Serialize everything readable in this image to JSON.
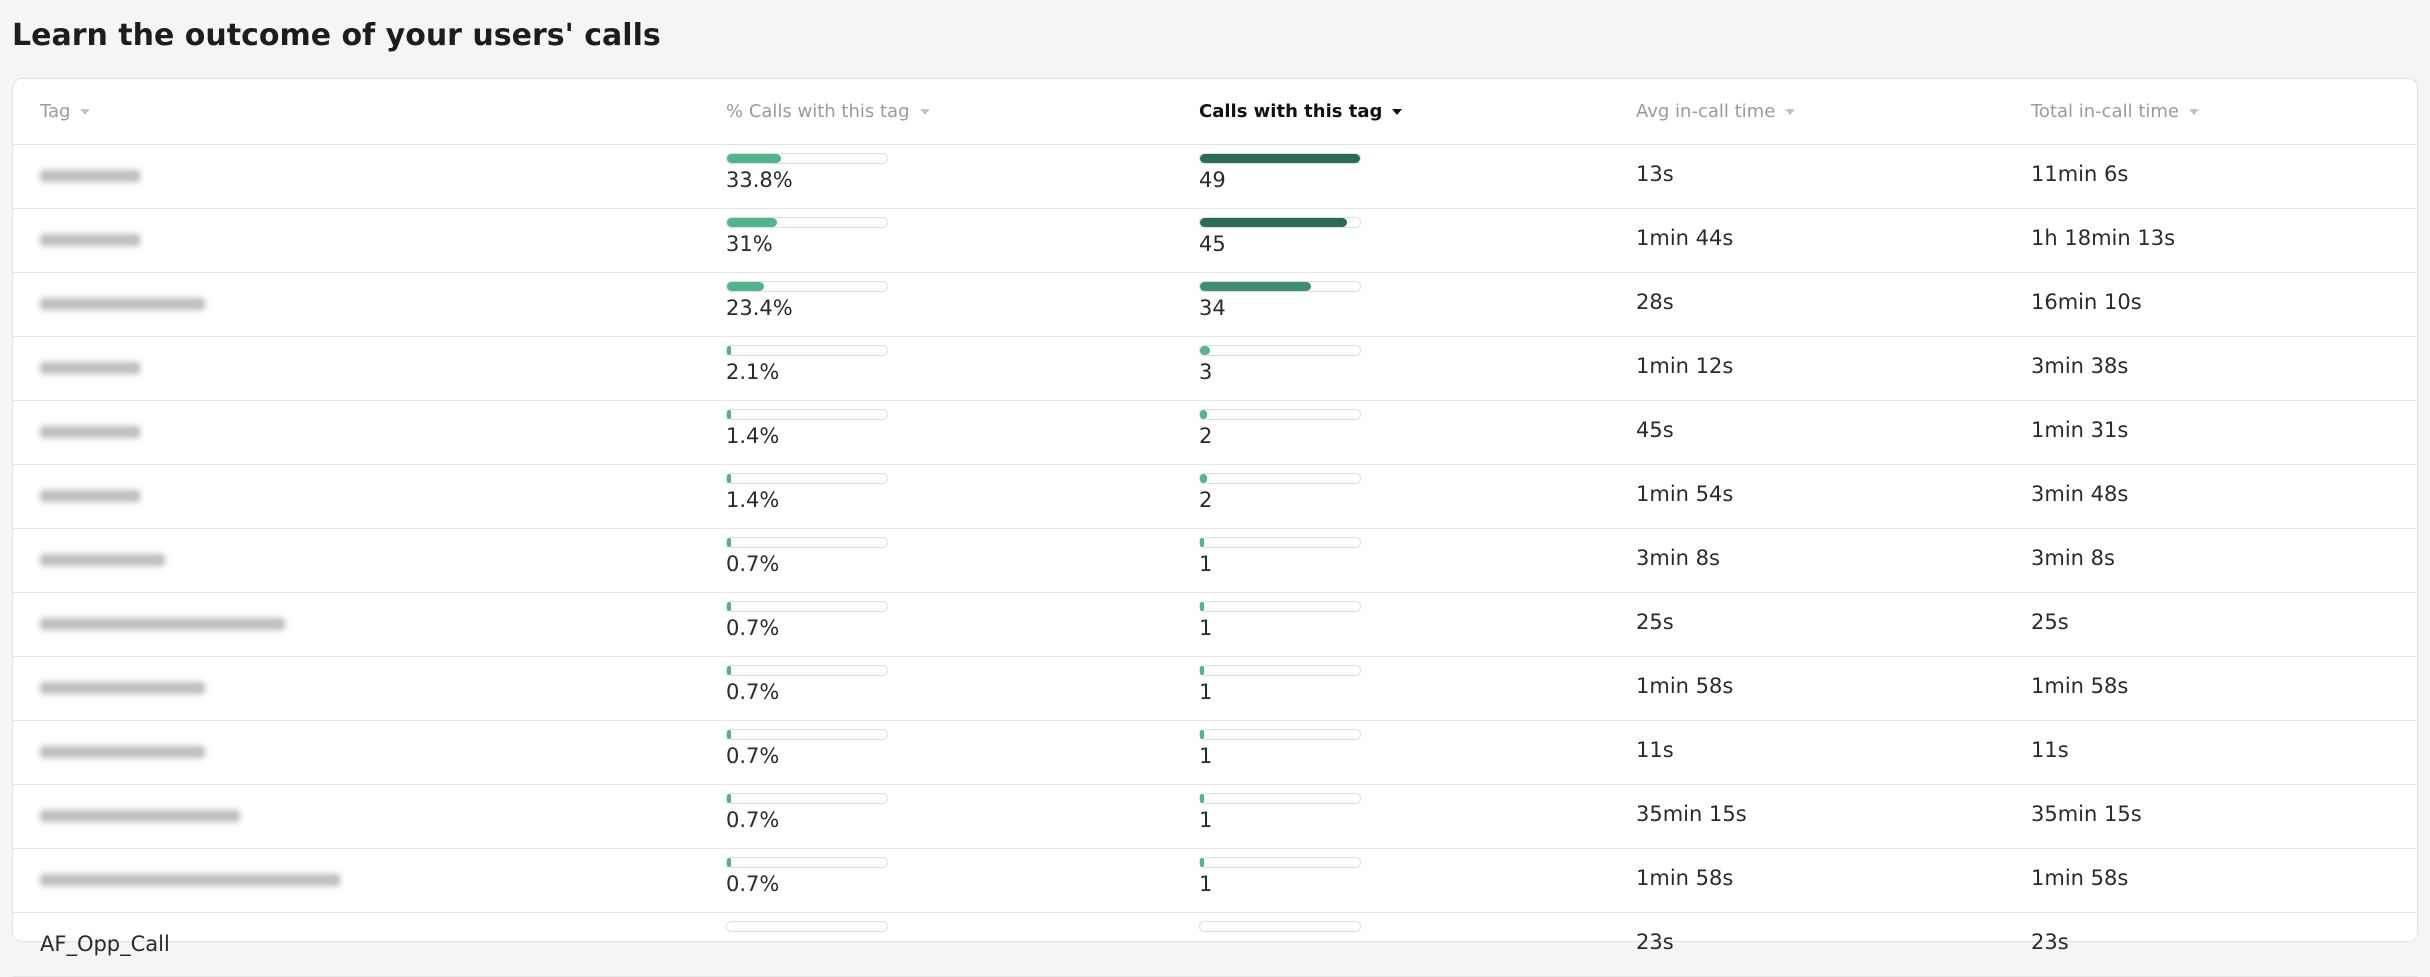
{
  "header": {
    "title": "Learn the outcome of your users' calls"
  },
  "table": {
    "columns": [
      "Tag",
      "% Calls with this tag",
      "Calls with this tag",
      "Avg in-call time",
      "Total in-call time"
    ],
    "sorted_column": 2,
    "rows": [
      {
        "tag": null,
        "pct": {
          "value": 33.8,
          "label": "33.8%"
        },
        "calls": 49,
        "avg": "13s",
        "total": "11min 6s"
      },
      {
        "tag": null,
        "pct": {
          "value": 31,
          "label": "31%"
        },
        "calls": 45,
        "avg": "1min 44s",
        "total": "1h 18min 13s"
      },
      {
        "tag": null,
        "pct": {
          "value": 23.4,
          "label": "23.4%"
        },
        "calls": 34,
        "avg": "28s",
        "total": "16min 10s"
      },
      {
        "tag": null,
        "pct": {
          "value": 2.1,
          "label": "2.1%"
        },
        "calls": 3,
        "avg": "1min 12s",
        "total": "3min 38s"
      },
      {
        "tag": null,
        "pct": {
          "value": 1.4,
          "label": "1.4%"
        },
        "calls": 2,
        "avg": "45s",
        "total": "1min 31s"
      },
      {
        "tag": null,
        "pct": {
          "value": 1.4,
          "label": "1.4%"
        },
        "calls": 2,
        "avg": "1min 54s",
        "total": "3min 48s"
      },
      {
        "tag": null,
        "pct": {
          "value": 0.7,
          "label": "0.7%"
        },
        "calls": 1,
        "avg": "3min 8s",
        "total": "3min 8s"
      },
      {
        "tag": null,
        "pct": {
          "value": 0.7,
          "label": "0.7%"
        },
        "calls": 1,
        "avg": "25s",
        "total": "25s"
      },
      {
        "tag": null,
        "pct": {
          "value": 0.7,
          "label": "0.7%"
        },
        "calls": 1,
        "avg": "1min 58s",
        "total": "1min 58s"
      },
      {
        "tag": null,
        "pct": {
          "value": 0.7,
          "label": "0.7%"
        },
        "calls": 1,
        "avg": "11s",
        "total": "11s"
      },
      {
        "tag": null,
        "pct": {
          "value": 0.7,
          "label": "0.7%"
        },
        "calls": 1,
        "avg": "35min 15s",
        "total": "35min 15s"
      },
      {
        "tag": null,
        "pct": {
          "value": 0.7,
          "label": "0.7%"
        },
        "calls": 1,
        "avg": "1min 58s",
        "total": "1min 58s"
      },
      {
        "tag": "AF_Opp_Call",
        "pct": null,
        "calls": null,
        "avg": "23s",
        "total": "23s"
      }
    ]
  }
}
